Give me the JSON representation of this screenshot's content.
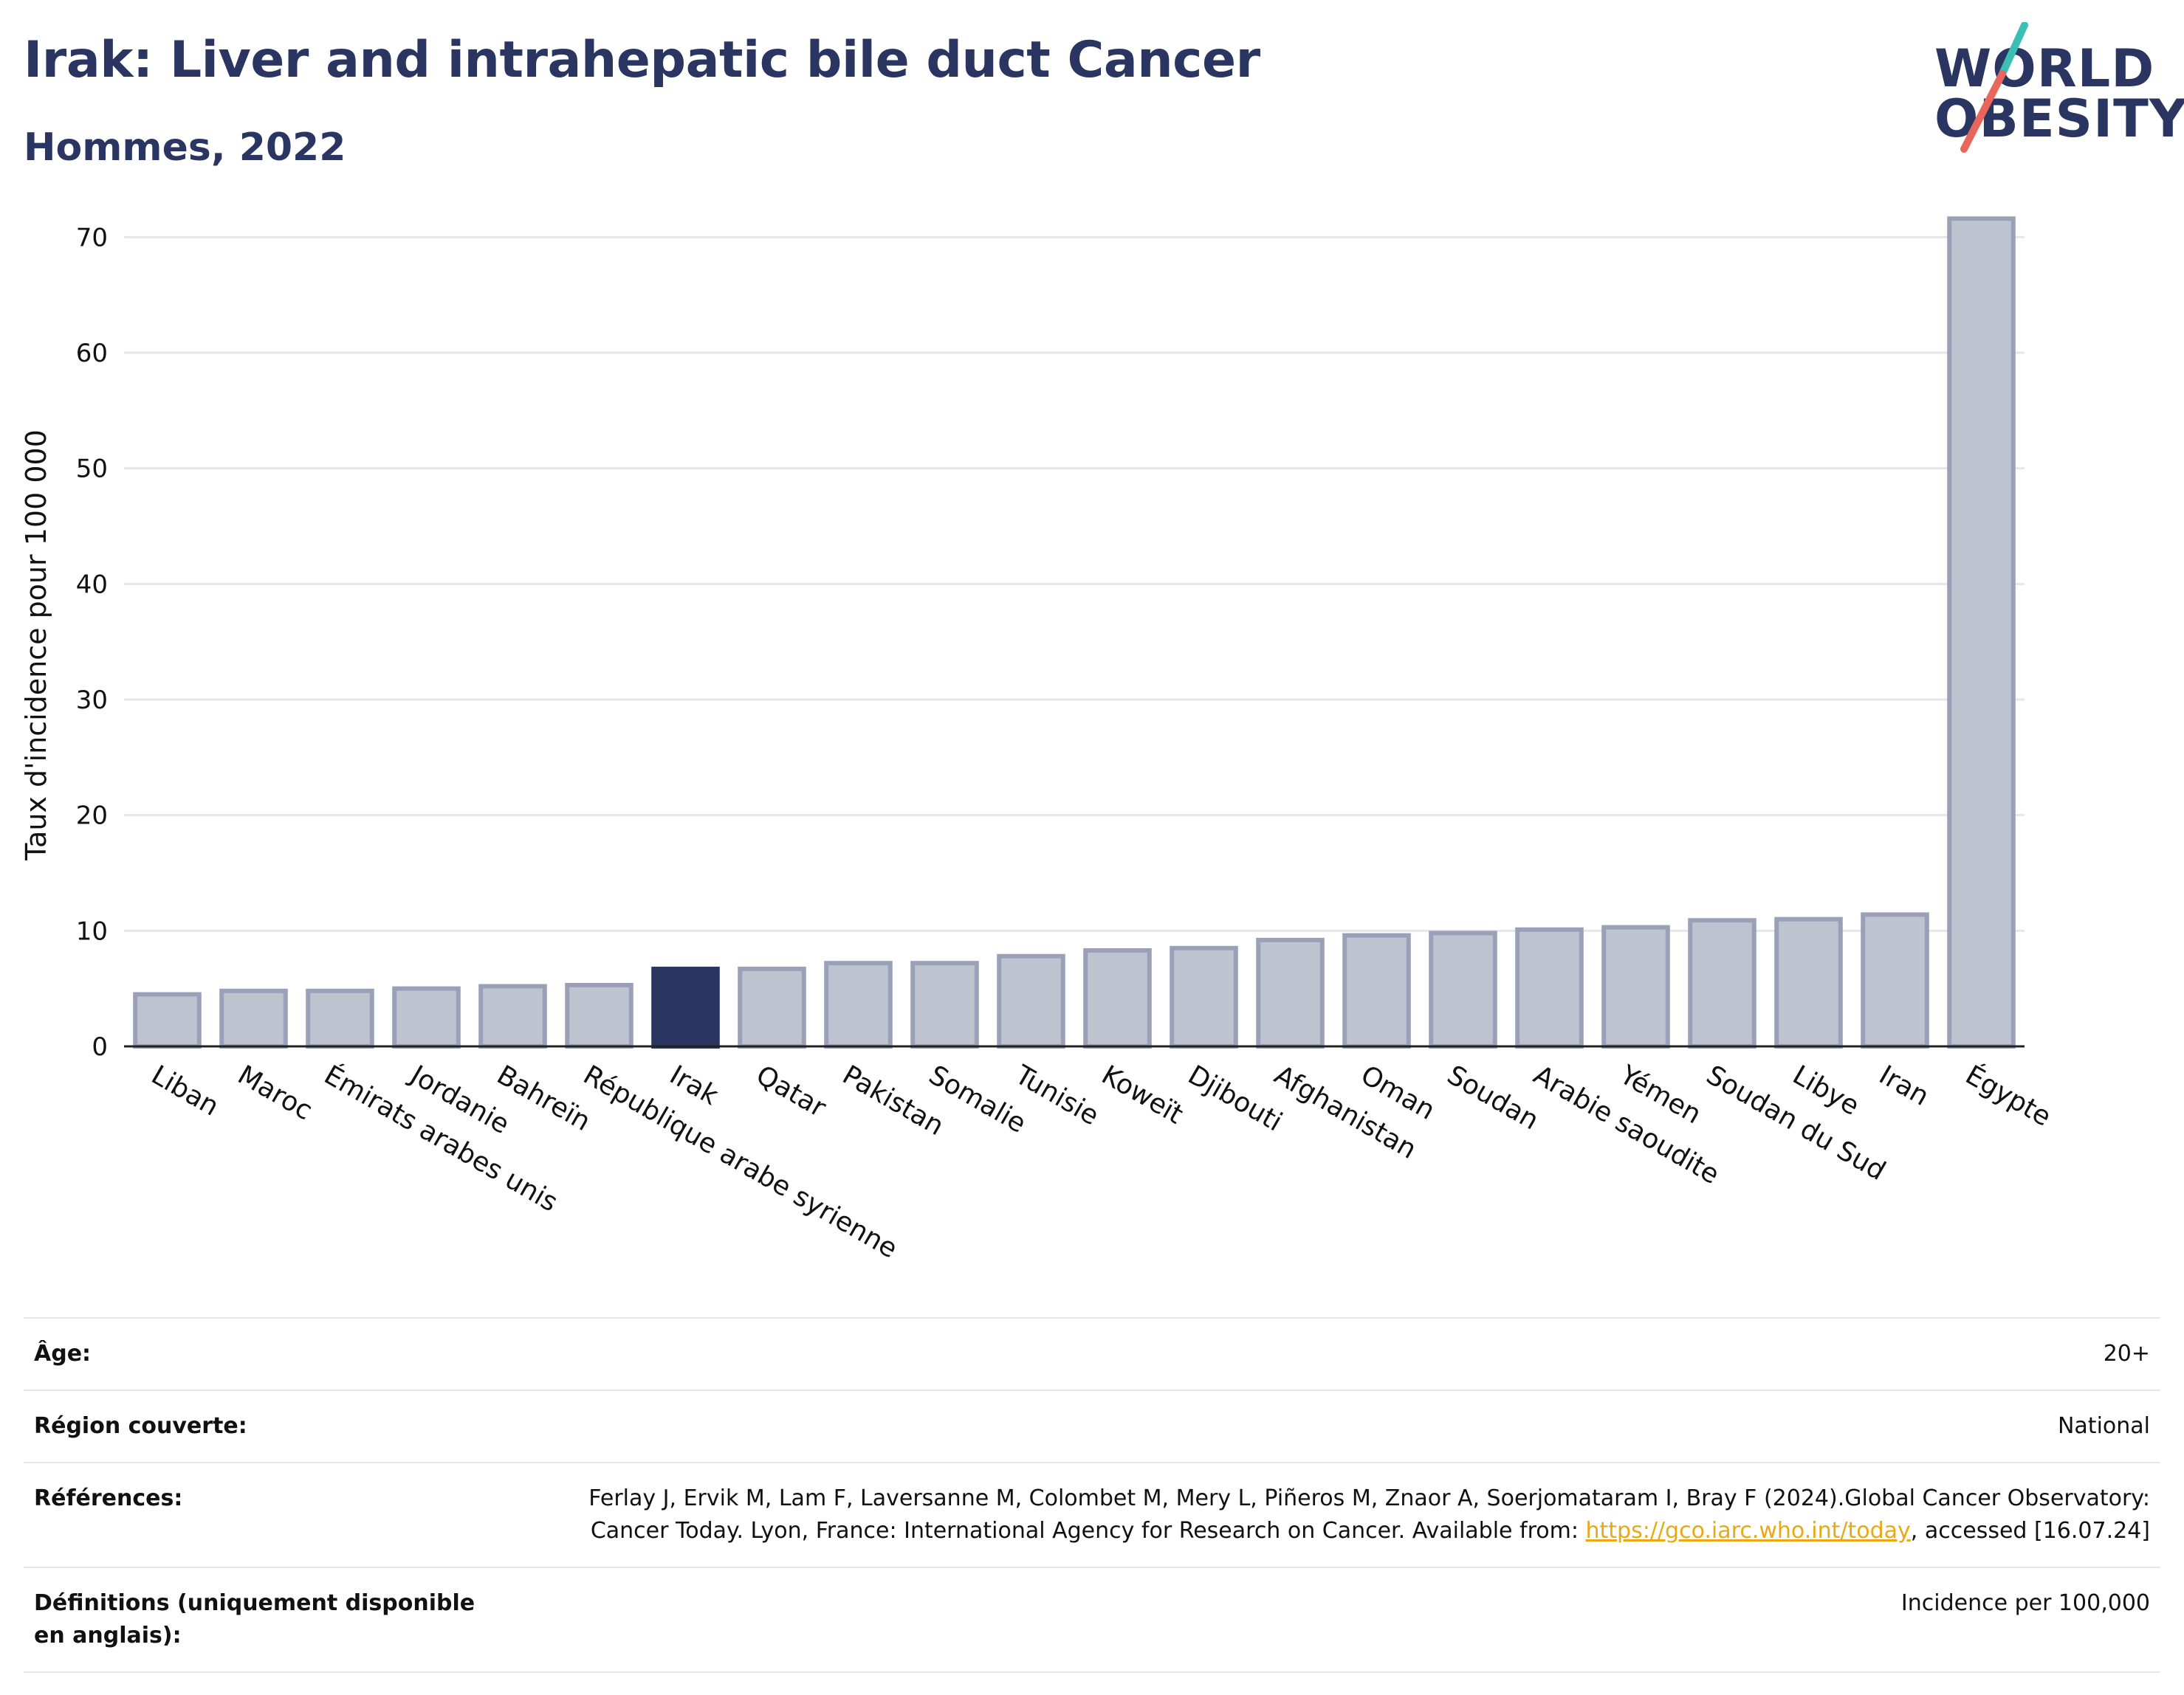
{
  "header": {
    "title": "Irak: Liver and intrahepatic bile duct Cancer",
    "subtitle": "Hommes, 2022"
  },
  "logo": {
    "line1": "WORLD",
    "line2": "OBESITY",
    "slash_colors": [
      "#3bbfb4",
      "#e8665c"
    ]
  },
  "colors": {
    "highlight": "#2a3561",
    "bar_fill": "#bfc3d0",
    "bar_stroke": "#9aa0b8",
    "grid": "#e6e6ea"
  },
  "chart_data": {
    "type": "bar",
    "title": "Irak: Liver and intrahepatic bile duct Cancer",
    "subtitle": "Hommes, 2022",
    "xlabel": "",
    "ylabel": "Taux d'incidence pour 100 000",
    "ylim": [
      0,
      72
    ],
    "yticks": [
      0,
      10,
      20,
      30,
      40,
      50,
      60,
      70
    ],
    "grid": true,
    "highlight": "Irak",
    "categories": [
      "Liban",
      "Maroc",
      "Émirats arabes unis",
      "Jordanie",
      "Bahreïn",
      "République arabe syrienne",
      "Irak",
      "Qatar",
      "Pakistan",
      "Somalie",
      "Tunisie",
      "Koweït",
      "Djibouti",
      "Afghanistan",
      "Oman",
      "Soudan",
      "Arabie saoudite",
      "Yémen",
      "Soudan du Sud",
      "Libye",
      "Iran",
      "Égypte"
    ],
    "values": [
      4.5,
      4.8,
      4.8,
      5.0,
      5.2,
      5.3,
      6.7,
      6.7,
      7.2,
      7.2,
      7.8,
      8.3,
      8.5,
      9.2,
      9.6,
      9.8,
      10.1,
      10.3,
      10.9,
      11.0,
      11.4,
      71.6
    ]
  },
  "info": {
    "age_label": "Âge:",
    "age_value": "20+",
    "region_label": "Région couverte:",
    "region_value": "National",
    "refs_label": "Références:",
    "refs_text1": "Ferlay J, Ervik M, Lam F, Laversanne M, Colombet M, Mery L, Piñeros M, Znaor A, Soerjomataram I, Bray F (2024).Global Cancer Observatory: Cancer Today. Lyon, France: International Agency for Research on Cancer. Available from: ",
    "refs_link": "https://gco.iarc.who.int/today",
    "refs_text2": ", accessed [16.07.24]",
    "defs_label": "Définitions (uniquement disponible en anglais):",
    "defs_value": "Incidence per 100,000"
  }
}
